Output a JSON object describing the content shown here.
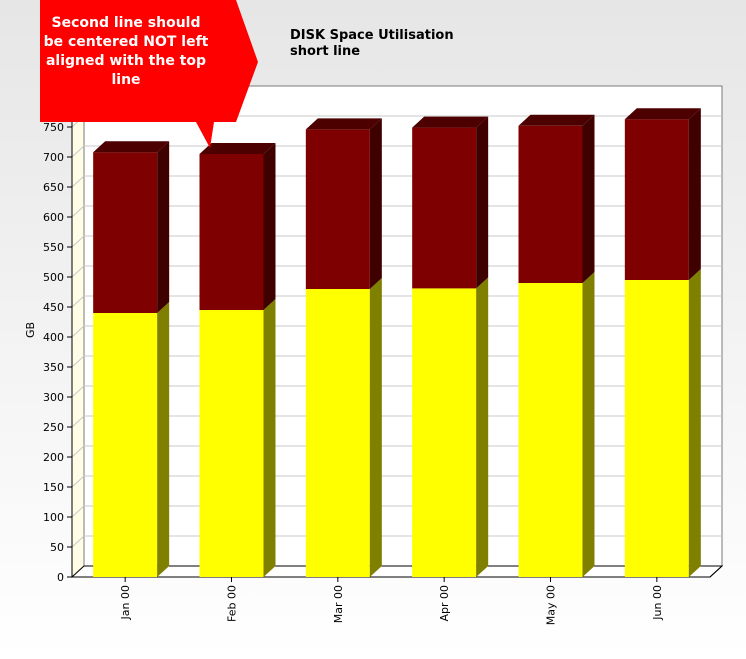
{
  "chart_data": {
    "type": "bar",
    "stacked": true,
    "render": "3d",
    "title_lines": [
      "DISK Space Utilisation",
      "short line"
    ],
    "ylabel": "GB",
    "xlabel": "",
    "ylim": [
      0,
      800
    ],
    "ytick_step": 50,
    "yticks_shown_max": 750,
    "categories": [
      "Jan 00",
      "Feb 00",
      "Mar 00",
      "Apr 00",
      "May 00",
      "Jun 00"
    ],
    "series": [
      {
        "values": [
          440,
          445,
          480,
          481,
          490,
          495
        ],
        "color": "#ffff00",
        "side_color": "#7f7f00",
        "top_color": "#cccc00"
      },
      {
        "values": [
          268,
          260,
          266,
          268,
          262,
          268
        ],
        "color": "#7f0000",
        "side_color": "#3f0000",
        "top_color": "#4c0000"
      }
    ],
    "grid": true,
    "legend": "none",
    "annotation": {
      "lines": [
        "Second line should",
        "be centered NOT left",
        "aligned with the top",
        "line"
      ],
      "color": "#ff0000"
    }
  }
}
